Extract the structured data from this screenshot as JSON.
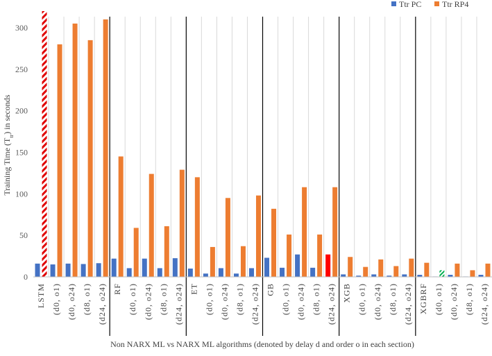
{
  "chart_data": {
    "type": "bar",
    "xlabel": "Non NARX ML vs NARX ML algorithms (denoted by delay d and order o in each section)",
    "ylabel": "Training Time (T",
    "ylabel_sub": "tr",
    "ylabel_tail": ") in seconds",
    "ylim": [
      0,
      320
    ],
    "yticks": [
      0,
      50,
      100,
      150,
      200,
      250,
      300
    ],
    "grid": "vertical",
    "legend_position": "top-right",
    "categories": [
      "LSTM",
      "(d0, o1)",
      "(d0, o24)",
      "(d8, o1)",
      "(d24, o24)",
      "RF",
      "(d0, o1)",
      "(d0, o24)",
      "(d8, o1)",
      "(d24, o24)",
      "ET",
      "(d0, o1)",
      "(d0, o24)",
      "(d8, o1)",
      "(d24, o24)",
      "GB",
      "(d0, o1)",
      "(d0, o24)",
      "(d8, o1)",
      "(d24, o24)",
      "XGB",
      "(d0, o1)",
      "(d0, o24)",
      "(d8, o1)",
      "(d24, o24)",
      "XGBRF",
      "(d0, o1)",
      "(d0, o24)",
      "(d8, o1)",
      "(d24, o24)"
    ],
    "section_dividers_after": [
      4,
      9,
      14,
      19,
      24
    ],
    "series": [
      {
        "name": "Ttr PC",
        "color": "#4472c4",
        "values": [
          16,
          15,
          16,
          15.5,
          16.5,
          22,
          10.5,
          22,
          10.5,
          22.5,
          10,
          4,
          10.5,
          4,
          10.5,
          23,
          11,
          27,
          11,
          27,
          3,
          1.5,
          3,
          1.5,
          3,
          2.5,
          0.5,
          2.5,
          0.5,
          2.5
        ]
      },
      {
        "name": "Ttr RP4",
        "color": "#ed7d31",
        "values": [
          320,
          280,
          305,
          285,
          310,
          145,
          59,
          124,
          61,
          129,
          120,
          36,
          95,
          37,
          98,
          82,
          51,
          108,
          51,
          108,
          24,
          12,
          21,
          13,
          22,
          17,
          8,
          16,
          8,
          16
        ]
      }
    ],
    "highlights": [
      {
        "category_index": 0,
        "series": 1,
        "style": "red-white-hatch",
        "note": "bar truncated at axis limit"
      },
      {
        "category_index": 19,
        "series": 0,
        "style": "solid-red",
        "color": "#ff0000"
      },
      {
        "category_index": 26,
        "series": 1,
        "style": "green-white-hatch",
        "color": "#00b050"
      }
    ]
  }
}
